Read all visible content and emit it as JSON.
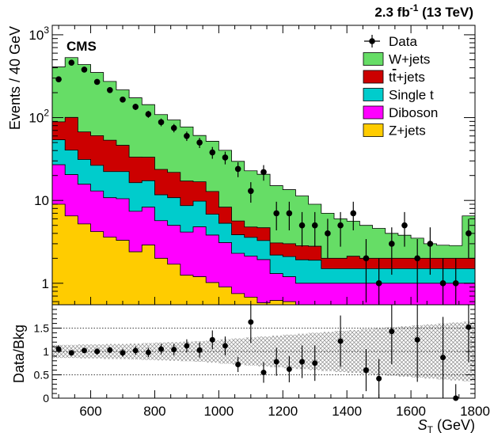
{
  "header": {
    "lumi_value": "2.3 fb",
    "lumi_exponent": "-1",
    "energy": " (13 TeV)",
    "experiment": "CMS"
  },
  "chart_data": [
    {
      "type": "histogram-stacked",
      "ylabel": "Events / 40 GeV",
      "yscale": "log",
      "ylim": [
        0.55,
        1300
      ],
      "xlim": [
        480,
        1800
      ],
      "x_ticks": [
        600,
        800,
        1000,
        1200,
        1400,
        1600,
        1800
      ],
      "y_tick_labels": [
        {
          "value": 1000,
          "base": "10",
          "exp": "3"
        },
        {
          "value": 100,
          "base": "10",
          "exp": "2"
        },
        {
          "value": 10,
          "base": "10",
          "exp": ""
        },
        {
          "value": 1,
          "base": "1",
          "exp": ""
        }
      ],
      "bin_width": 40,
      "bin_low_edges": [
        480,
        520,
        560,
        600,
        640,
        680,
        720,
        760,
        800,
        840,
        880,
        920,
        960,
        1000,
        1040,
        1080,
        1120,
        1160,
        1200,
        1240,
        1280,
        1320,
        1360,
        1400,
        1440,
        1480,
        1520,
        1560,
        1600,
        1640,
        1680,
        1720,
        1760
      ],
      "legend_position": "top-right",
      "stack_order": [
        "Z+jets",
        "Diboson",
        "Single t",
        "tt+jets",
        "W+jets"
      ],
      "series": [
        {
          "name": "Z+jets",
          "color": "#ffcc00",
          "values": [
            9,
            6.5,
            5.2,
            4.2,
            3.6,
            3.3,
            2.4,
            2.9,
            2.0,
            1.7,
            1.25,
            1.2,
            1.02,
            0.9,
            0.75,
            0.68,
            0.58,
            0.62,
            0.6,
            0.5,
            0.5,
            0.5,
            0.5,
            0.5,
            0.5,
            0.5,
            0.5,
            0.5,
            0.5,
            0.5,
            0.5,
            0.5,
            0.5
          ]
        },
        {
          "name": "Diboson",
          "color": "#ff00ff",
          "values": [
            18,
            14,
            10.5,
            8.8,
            7.2,
            7.2,
            5.0,
            5.4,
            3.7,
            3.3,
            2.9,
            3.6,
            2.8,
            2.2,
            1.55,
            1.45,
            1.35,
            0.69,
            0.6,
            0.5,
            0.5,
            0.5,
            0.5,
            0.5,
            0.5,
            0.5,
            0.5,
            0.5,
            0.5,
            0.5,
            0.5,
            0.5,
            0.5
          ]
        },
        {
          "name": "Single t",
          "color": "#00cccc",
          "values": [
            27,
            20,
            15.5,
            13.5,
            11.5,
            11.8,
            9.0,
            9.0,
            6.0,
            5.8,
            4.5,
            5.0,
            3.0,
            2.2,
            1.55,
            1.45,
            1.35,
            0.88,
            0.9,
            0.92,
            0.9,
            0.5,
            0.5,
            0.5,
            0.5,
            0.5,
            0.5,
            0.5,
            0.5,
            0.5,
            0.5,
            0.5,
            0.5
          ]
        },
        {
          "name": "tt+jets",
          "color": "#cc0000",
          "values": [
            35,
            60,
            36,
            34,
            31,
            24,
            17,
            16,
            12,
            11,
            8.5,
            7.0,
            6.0,
            3.0,
            1.8,
            1.2,
            1.4,
            0.88,
            0.9,
            0.92,
            0.9,
            0.5,
            0.5,
            0.62,
            0.5,
            0.5,
            0.5,
            0.5,
            0.5,
            0.5,
            0.5,
            0.5,
            0.5
          ]
        },
        {
          "name": "W+jets",
          "color": "#66dd66",
          "values": [
            320,
            430,
            370,
            290,
            220,
            170,
            140,
            110,
            85,
            72,
            60,
            44,
            39,
            32,
            24,
            18,
            16,
            12,
            10.5,
            8.5,
            6.2,
            5.0,
            4.0,
            3.5,
            3.0,
            2.6,
            2.0,
            1.8,
            1.5,
            1.0,
            0.88,
            0.85,
            4.5
          ]
        },
        {
          "name": "Data",
          "marker": "point",
          "x": [
            500,
            540,
            580,
            620,
            660,
            700,
            740,
            780,
            820,
            860,
            900,
            940,
            980,
            1020,
            1060,
            1100,
            1140,
            1180,
            1220,
            1260,
            1300,
            1340,
            1380,
            1420,
            1460,
            1500,
            1540,
            1580,
            1620,
            1660,
            1700,
            1740,
            1780
          ],
          "values": [
            290,
            460,
            380,
            270,
            215,
            165,
            135,
            110,
            88,
            75,
            60,
            50,
            38,
            33,
            24,
            13,
            22,
            7,
            7,
            5,
            5,
            4,
            5,
            7,
            2,
            1,
            3,
            5,
            2,
            3,
            1,
            1,
            4
          ]
        }
      ]
    },
    {
      "type": "ratio",
      "xlabel_base": "S",
      "xlabel_sub": "T",
      "xlabel_unit": " (GeV)",
      "ylabel": "Data/Bkg",
      "ylim": [
        0,
        2
      ],
      "xlim": [
        480,
        1800
      ],
      "y_ticks": [
        0,
        0.5,
        1,
        1.5
      ],
      "y_tick_labels": [
        "0",
        "0.5",
        "1",
        "1.5"
      ],
      "reference_lines": [
        0.5,
        1,
        1.5
      ],
      "uncertainty_band_halfwidth": [
        0.14,
        0.14,
        0.15,
        0.15,
        0.16,
        0.16,
        0.17,
        0.18,
        0.19,
        0.2,
        0.21,
        0.22,
        0.24,
        0.26,
        0.28,
        0.3,
        0.32,
        0.34,
        0.36,
        0.38,
        0.4,
        0.42,
        0.44,
        0.46,
        0.48,
        0.5,
        0.52,
        0.54,
        0.56,
        0.58,
        0.6,
        0.62,
        0.64
      ],
      "x": [
        500,
        540,
        580,
        620,
        660,
        700,
        740,
        780,
        820,
        860,
        900,
        940,
        980,
        1020,
        1060,
        1100,
        1140,
        1180,
        1220,
        1260,
        1300,
        1340,
        1380,
        1420,
        1460,
        1500,
        1540,
        1580,
        1620,
        1660,
        1700,
        1740,
        1780
      ],
      "values": [
        1.05,
        0.97,
        1.02,
        1.0,
        1.03,
        0.97,
        1.02,
        0.98,
        1.05,
        1.04,
        1.12,
        1.03,
        1.25,
        1.12,
        0.72,
        1.63,
        0.55,
        0.78,
        0.62,
        0.78,
        0.75,
        null,
        1.22,
        null,
        0.6,
        0.42,
        1.43,
        null,
        1.25,
        null,
        0.87,
        0.0,
        1.52
      ],
      "errors": [
        0.08,
        0.05,
        0.05,
        0.07,
        0.07,
        0.08,
        0.09,
        0.1,
        0.11,
        0.12,
        0.14,
        0.16,
        0.2,
        0.2,
        0.16,
        0.45,
        0.22,
        0.3,
        0.28,
        0.35,
        0.38,
        null,
        0.55,
        null,
        0.45,
        0.42,
        0.7,
        null,
        0.9,
        null,
        0.87,
        0.3,
        0.75
      ]
    }
  ]
}
